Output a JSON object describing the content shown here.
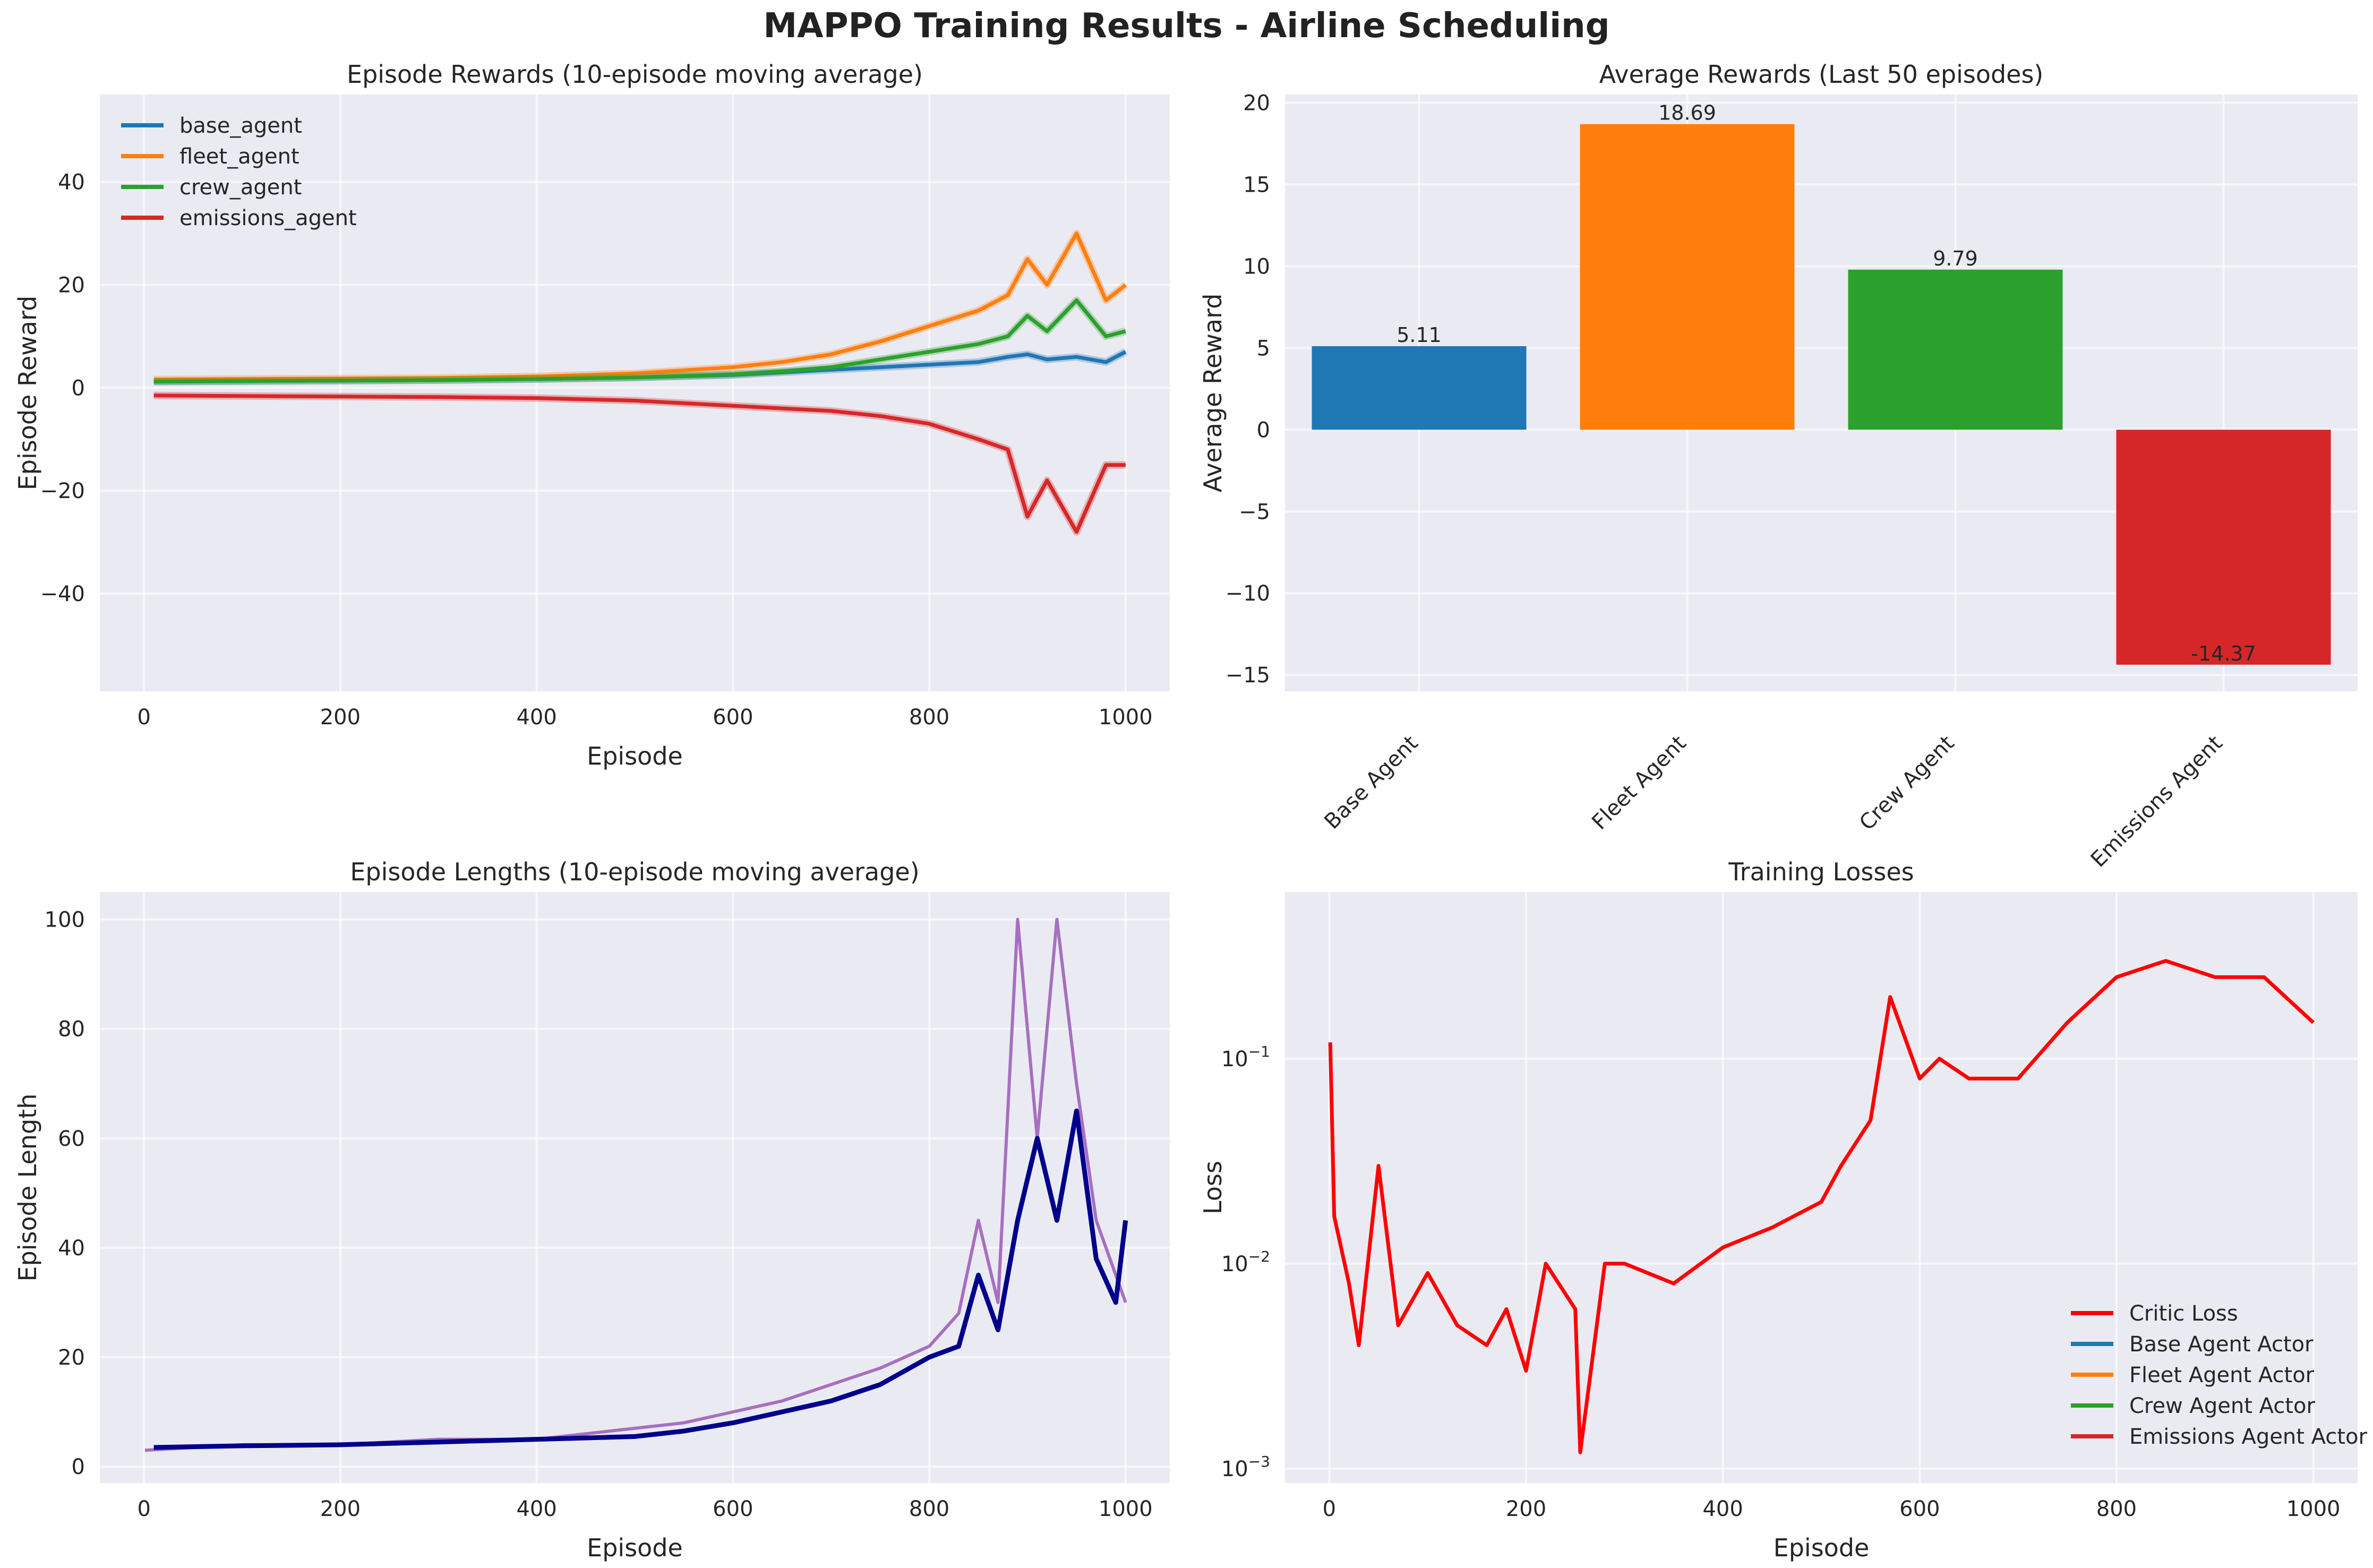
{
  "figure": {
    "title": "MAPPO Training Results - Airline Scheduling"
  },
  "chart_data": [
    {
      "type": "line",
      "title": "Episode Rewards (10-episode moving average)",
      "xlabel": "Episode",
      "ylabel": "Episode Reward",
      "xlim": [
        -45,
        1045
      ],
      "ylim": [
        -59,
        57
      ],
      "xticks": [
        0,
        200,
        400,
        600,
        800,
        1000
      ],
      "yticks": [
        -40,
        -20,
        0,
        20,
        40
      ],
      "grid": true,
      "legend": "top-left",
      "series": [
        {
          "name": "base_agent",
          "color": "#1f77b4",
          "x": [
            10,
            100,
            200,
            300,
            400,
            500,
            600,
            650,
            700,
            750,
            800,
            850,
            880,
            900,
            920,
            950,
            980,
            1000
          ],
          "values": [
            1.2,
            1.3,
            1.4,
            1.5,
            1.7,
            2.0,
            2.5,
            3.0,
            3.5,
            4.0,
            4.5,
            5.0,
            6.0,
            6.5,
            5.5,
            6.0,
            5.0,
            7.0
          ]
        },
        {
          "name": "fleet_agent",
          "color": "#ff7f0e",
          "x": [
            10,
            100,
            200,
            300,
            400,
            500,
            600,
            650,
            700,
            750,
            800,
            850,
            880,
            900,
            920,
            950,
            980,
            1000
          ],
          "values": [
            1.6,
            1.7,
            1.8,
            1.9,
            2.2,
            2.8,
            4.0,
            5.0,
            6.5,
            9.0,
            12.0,
            15.0,
            18.0,
            25.0,
            20.0,
            30.0,
            17.0,
            20.0
          ]
        },
        {
          "name": "crew_agent",
          "color": "#2ca02c",
          "x": [
            10,
            100,
            200,
            300,
            400,
            500,
            600,
            650,
            700,
            750,
            800,
            850,
            880,
            900,
            920,
            950,
            980,
            1000
          ],
          "values": [
            1.2,
            1.3,
            1.4,
            1.5,
            1.7,
            2.0,
            2.6,
            3.2,
            4.0,
            5.5,
            7.0,
            8.5,
            10.0,
            14.0,
            11.0,
            17.0,
            10.0,
            11.0
          ]
        },
        {
          "name": "emissions_agent",
          "color": "#d62728",
          "x": [
            10,
            100,
            200,
            300,
            400,
            500,
            600,
            650,
            700,
            750,
            800,
            850,
            880,
            900,
            920,
            950,
            980,
            1000
          ],
          "values": [
            -1.5,
            -1.6,
            -1.7,
            -1.8,
            -2.0,
            -2.5,
            -3.5,
            -4.0,
            -4.5,
            -5.5,
            -7.0,
            -10.0,
            -12.0,
            -25.0,
            -18.0,
            -28.0,
            -15.0,
            -15.0
          ]
        }
      ]
    },
    {
      "type": "bar",
      "title": "Average Rewards (Last 50 episodes)",
      "ylabel": "Average Reward",
      "categories": [
        "Base Agent",
        "Fleet Agent",
        "Crew Agent",
        "Emissions Agent"
      ],
      "values": [
        5.11,
        18.69,
        9.79,
        -14.37
      ],
      "value_labels": [
        "5.11",
        "18.69",
        "9.79",
        "-14.37"
      ],
      "colors": [
        "#1f77b4",
        "#ff7f0e",
        "#2ca02c",
        "#d62728"
      ],
      "ylim": [
        -16,
        20.5
      ],
      "yticks": [
        -15,
        -10,
        -5,
        0,
        5,
        10,
        15,
        20
      ],
      "grid": true
    },
    {
      "type": "line",
      "title": "Episode Lengths (10-episode moving average)",
      "xlabel": "Episode",
      "ylabel": "Episode Length",
      "xlim": [
        -45,
        1045
      ],
      "ylim": [
        -3,
        105
      ],
      "xticks": [
        0,
        200,
        400,
        600,
        800,
        1000
      ],
      "yticks": [
        0,
        20,
        40,
        60,
        80,
        100
      ],
      "grid": true,
      "series": [
        {
          "color": "#9b59b6",
          "x": [
            1,
            100,
            200,
            300,
            400,
            500,
            550,
            600,
            650,
            700,
            750,
            800,
            830,
            850,
            870,
            890,
            910,
            930,
            950,
            970,
            1000
          ],
          "values": [
            3,
            4,
            4,
            5,
            5,
            7,
            8,
            10,
            12,
            15,
            18,
            22,
            28,
            45,
            30,
            100,
            60,
            100,
            70,
            45,
            30
          ]
        },
        {
          "color": "#00008b",
          "x": [
            10,
            100,
            200,
            300,
            400,
            500,
            550,
            600,
            650,
            700,
            750,
            800,
            830,
            850,
            870,
            890,
            910,
            930,
            950,
            970,
            990,
            1000
          ],
          "values": [
            3.5,
            3.8,
            4.0,
            4.5,
            5.0,
            5.5,
            6.5,
            8.0,
            10.0,
            12.0,
            15.0,
            20.0,
            22.0,
            35.0,
            25.0,
            45.0,
            60.0,
            45.0,
            65.0,
            38.0,
            30.0,
            45.0
          ]
        }
      ]
    },
    {
      "type": "line",
      "title": "Training Losses",
      "xlabel": "Episode",
      "ylabel": "Loss",
      "xlim": [
        -45,
        1045
      ],
      "ylim": [
        0.00085,
        0.65
      ],
      "yscale": "log",
      "xticks": [
        0,
        200,
        400,
        600,
        800,
        1000
      ],
      "yticks": [
        0.001,
        0.01,
        0.1
      ],
      "ytick_labels": [
        {
          "base": "10",
          "exp": "−3"
        },
        {
          "base": "10",
          "exp": "−2"
        },
        {
          "base": "10",
          "exp": "−1"
        }
      ],
      "grid": true,
      "legend": "bottom-right",
      "series": [
        {
          "name": "Critic Loss",
          "color": "#ff0000",
          "x": [
            1,
            5,
            20,
            30,
            50,
            70,
            100,
            130,
            160,
            180,
            200,
            220,
            250,
            255,
            280,
            300,
            350,
            400,
            450,
            500,
            520,
            550,
            570,
            600,
            620,
            650,
            700,
            750,
            800,
            850,
            900,
            950,
            1000
          ],
          "values": [
            0.12,
            0.017,
            0.008,
            0.004,
            0.03,
            0.005,
            0.009,
            0.005,
            0.004,
            0.006,
            0.003,
            0.01,
            0.006,
            0.0012,
            0.01,
            0.01,
            0.008,
            0.012,
            0.015,
            0.02,
            0.03,
            0.05,
            0.2,
            0.08,
            0.1,
            0.08,
            0.08,
            0.15,
            0.25,
            0.3,
            0.25,
            0.25,
            0.15
          ]
        },
        {
          "name": "Base Agent Actor",
          "color": "#1f77b4",
          "values": []
        },
        {
          "name": "Fleet Agent Actor",
          "color": "#ff7f0e",
          "values": []
        },
        {
          "name": "Crew Agent Actor",
          "color": "#2ca02c",
          "values": []
        },
        {
          "name": "Emissions Agent Actor",
          "color": "#d62728",
          "values": []
        }
      ]
    }
  ]
}
